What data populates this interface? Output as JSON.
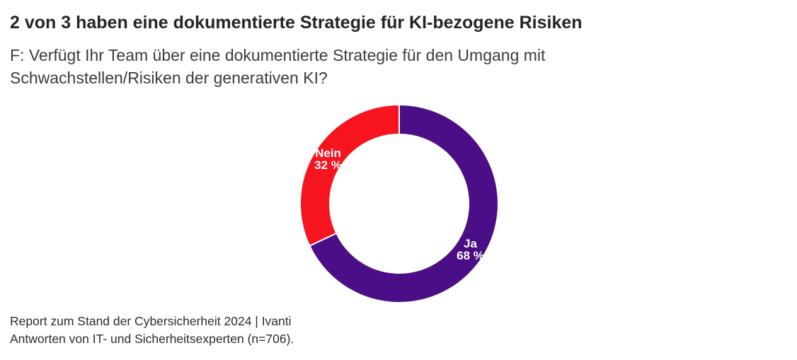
{
  "chart_data": {
    "type": "pie",
    "subtype": "donut",
    "title": "2 von 3 haben eine dokumentierte Strategie für KI-bezogene Risiken",
    "subtitle": "F: Verfügt Ihr Team über eine dokumentierte Strategie für den Umgang mit Schwachstellen/Risiken der generativen KI?",
    "categories": [
      "Ja",
      "Nein"
    ],
    "values": [
      68,
      32
    ],
    "start_angle_deg": 0,
    "direction": "clockwise",
    "inner_radius_ratio": 0.71,
    "divider_color": "#ffffff",
    "label_color": "#ffffff",
    "legend": "none",
    "slices": [
      {
        "label": "Ja",
        "value_pct": 68,
        "value_display": "68 %",
        "color": "#4B0E86"
      },
      {
        "label": "Nein",
        "value_pct": 32,
        "value_display": "32 %",
        "color": "#F6141E"
      }
    ],
    "source_line1": "Report zum Stand der Cybersicherheit 2024 | Ivanti",
    "source_line2": "Antworten von IT- und Sicherheitsexperten (n=706)."
  }
}
